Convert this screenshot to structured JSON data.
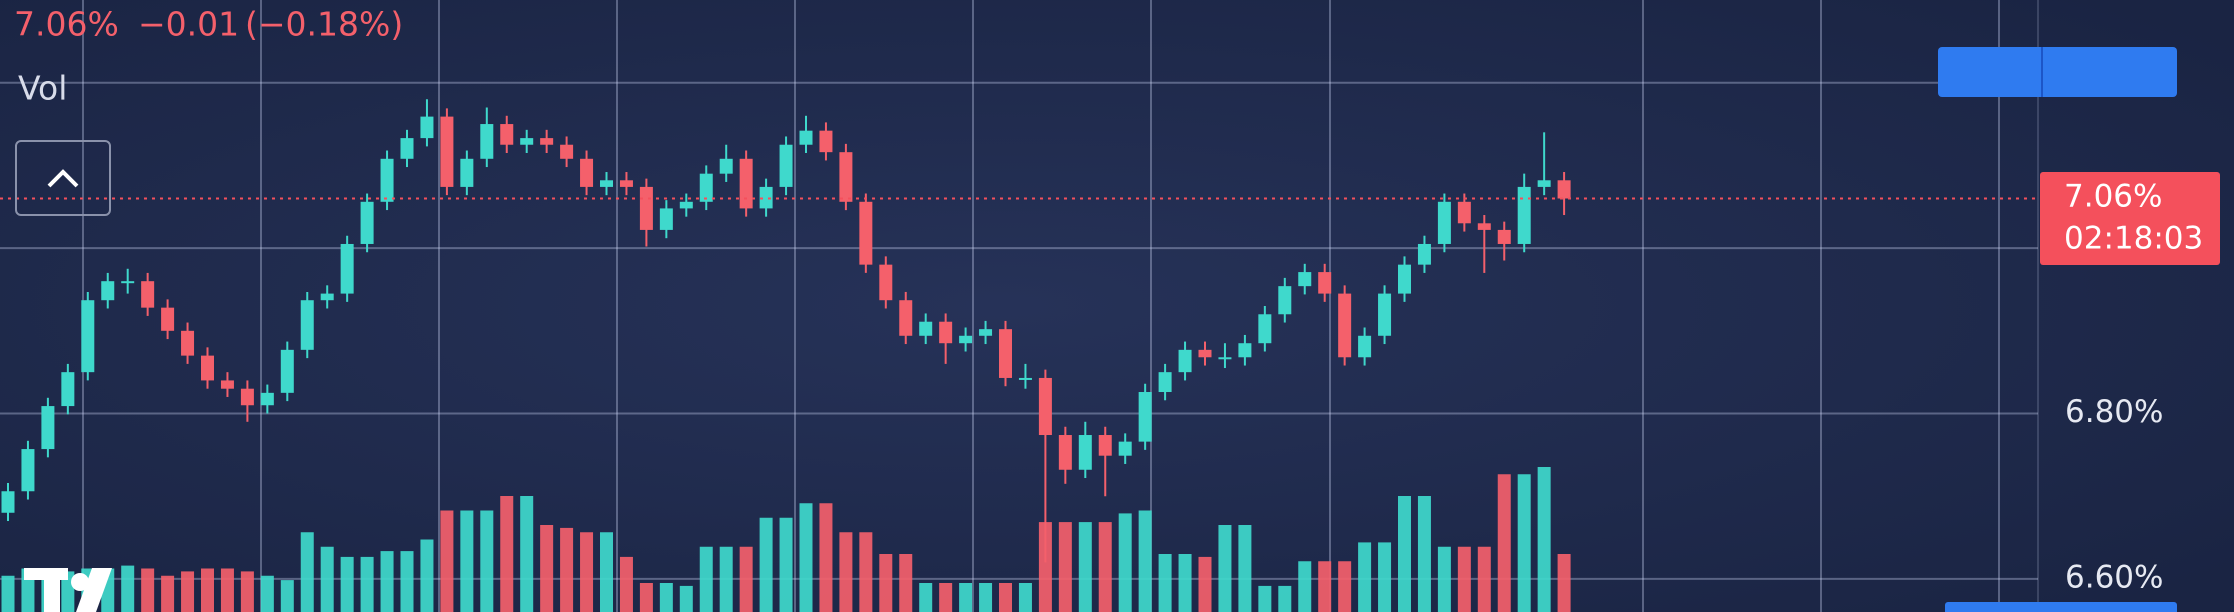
{
  "chart_data": {
    "type": "candlestick",
    "last": {
      "value": 7.06,
      "label": "7.06%"
    },
    "change": {
      "value": -0.01,
      "label": "−0.01"
    },
    "change_pct": {
      "value": -0.18,
      "label": "(−0.18%)"
    },
    "volume_label": "Vol",
    "high": [
      6.716,
      6.767,
      6.819,
      6.86,
      6.947,
      6.97,
      6.975,
      6.97,
      6.938,
      6.91,
      6.88,
      6.85,
      6.84,
      6.835,
      6.887,
      6.947,
      6.955,
      7.015,
      7.066,
      7.118,
      7.143,
      7.18,
      7.169,
      7.118,
      7.17,
      7.16,
      7.143,
      7.143,
      7.135,
      7.118,
      7.092,
      7.092,
      7.084,
      7.058,
      7.066,
      7.1,
      7.125,
      7.118,
      7.084,
      7.135,
      7.16,
      7.152,
      7.126,
      7.066,
      6.99,
      6.947,
      6.921,
      6.921,
      6.904,
      6.912,
      6.912,
      6.86,
      6.853,
      6.784,
      6.79,
      6.784,
      6.776,
      6.836,
      6.86,
      6.887,
      6.887,
      6.885,
      6.895,
      6.93,
      6.964,
      6.981,
      6.981,
      6.955,
      6.904,
      6.955,
      6.99,
      7.015,
      7.066,
      7.066,
      7.04,
      7.032,
      7.09,
      7.14,
      7.092
    ],
    "countdown": "02:18:03",
    "ylim": [
      6.56,
      7.3
    ],
    "yticks": [
      {
        "value": 6.8,
        "label": "6.80%"
      },
      {
        "value": 6.6,
        "label": "6.60%"
      }
    ],
    "ygrid": [
      7.2,
      7.0,
      6.8,
      6.6
    ],
    "up_color": "#3fd9cc",
    "down_color": "#f4606b",
    "open": [
      6.68,
      6.706,
      6.757,
      6.809,
      6.85,
      6.937,
      6.96,
      6.96,
      6.928,
      6.9,
      6.87,
      6.84,
      6.83,
      6.81,
      6.825,
      6.877,
      6.937,
      6.945,
      7.005,
      7.056,
      7.108,
      7.133,
      7.159,
      7.074,
      7.108,
      7.15,
      7.125,
      7.133,
      7.125,
      7.108,
      7.074,
      7.082,
      7.074,
      7.022,
      7.048,
      7.056,
      7.09,
      7.108,
      7.048,
      7.074,
      7.125,
      7.142,
      7.116,
      7.056,
      6.98,
      6.937,
      6.894,
      6.911,
      6.885,
      6.894,
      6.902,
      6.843,
      6.843,
      6.774,
      6.732,
      6.774,
      6.749,
      6.766,
      6.826,
      6.85,
      6.877,
      6.868,
      6.868,
      6.885,
      6.92,
      6.954,
      6.971,
      6.945,
      6.868,
      6.894,
      6.945,
      6.98,
      7.005,
      7.056,
      7.03,
      7.022,
      7.005,
      7.074,
      7.082
    ],
    "low": [
      6.67,
      6.696,
      6.747,
      6.799,
      6.84,
      6.927,
      6.945,
      6.918,
      6.89,
      6.86,
      6.83,
      6.82,
      6.79,
      6.8,
      6.815,
      6.867,
      6.927,
      6.935,
      6.995,
      7.046,
      7.098,
      7.123,
      7.064,
      7.064,
      7.098,
      7.115,
      7.115,
      7.115,
      7.098,
      7.064,
      7.064,
      7.064,
      7.002,
      7.012,
      7.038,
      7.046,
      7.08,
      7.038,
      7.038,
      7.064,
      7.115,
      7.106,
      7.046,
      6.97,
      6.927,
      6.884,
      6.884,
      6.86,
      6.875,
      6.884,
      6.833,
      6.83,
      6.62,
      6.715,
      6.722,
      6.7,
      6.739,
      6.756,
      6.816,
      6.84,
      6.858,
      6.855,
      6.858,
      6.875,
      6.91,
      6.944,
      6.935,
      6.858,
      6.858,
      6.884,
      6.935,
      6.97,
      6.995,
      7.02,
      6.97,
      6.985,
      6.995,
      7.064,
      7.04
    ],
    "close": [
      6.706,
      6.757,
      6.809,
      6.85,
      6.937,
      6.96,
      6.96,
      6.928,
      6.9,
      6.87,
      6.84,
      6.83,
      6.81,
      6.825,
      6.877,
      6.937,
      6.945,
      7.005,
      7.056,
      7.108,
      7.133,
      7.159,
      7.074,
      7.108,
      7.15,
      7.125,
      7.133,
      7.125,
      7.108,
      7.074,
      7.082,
      7.074,
      7.022,
      7.048,
      7.056,
      7.09,
      7.108,
      7.048,
      7.074,
      7.125,
      7.142,
      7.116,
      7.056,
      6.98,
      6.937,
      6.894,
      6.911,
      6.885,
      6.894,
      6.902,
      6.843,
      6.843,
      6.774,
      6.732,
      6.774,
      6.749,
      6.766,
      6.826,
      6.85,
      6.877,
      6.868,
      6.868,
      6.885,
      6.92,
      6.954,
      6.971,
      6.945,
      6.868,
      6.894,
      6.945,
      6.98,
      7.005,
      7.056,
      7.03,
      7.022,
      7.005,
      7.074,
      7.082,
      7.06
    ],
    "volume": [
      25,
      30,
      25,
      28,
      30,
      30,
      32,
      30,
      25,
      28,
      30,
      30,
      28,
      25,
      22,
      55,
      45,
      38,
      38,
      42,
      42,
      50,
      70,
      70,
      70,
      80,
      80,
      60,
      58,
      55,
      55,
      38,
      20,
      20,
      18,
      45,
      45,
      45,
      65,
      65,
      75,
      75,
      55,
      55,
      40,
      40,
      20,
      20,
      20,
      20,
      20,
      20,
      62,
      62,
      62,
      62,
      68,
      70,
      40,
      40,
      38,
      60,
      60,
      18,
      18,
      35,
      35,
      35,
      48,
      48,
      80,
      80,
      45,
      45,
      45,
      95,
      95,
      100,
      40
    ]
  }
}
